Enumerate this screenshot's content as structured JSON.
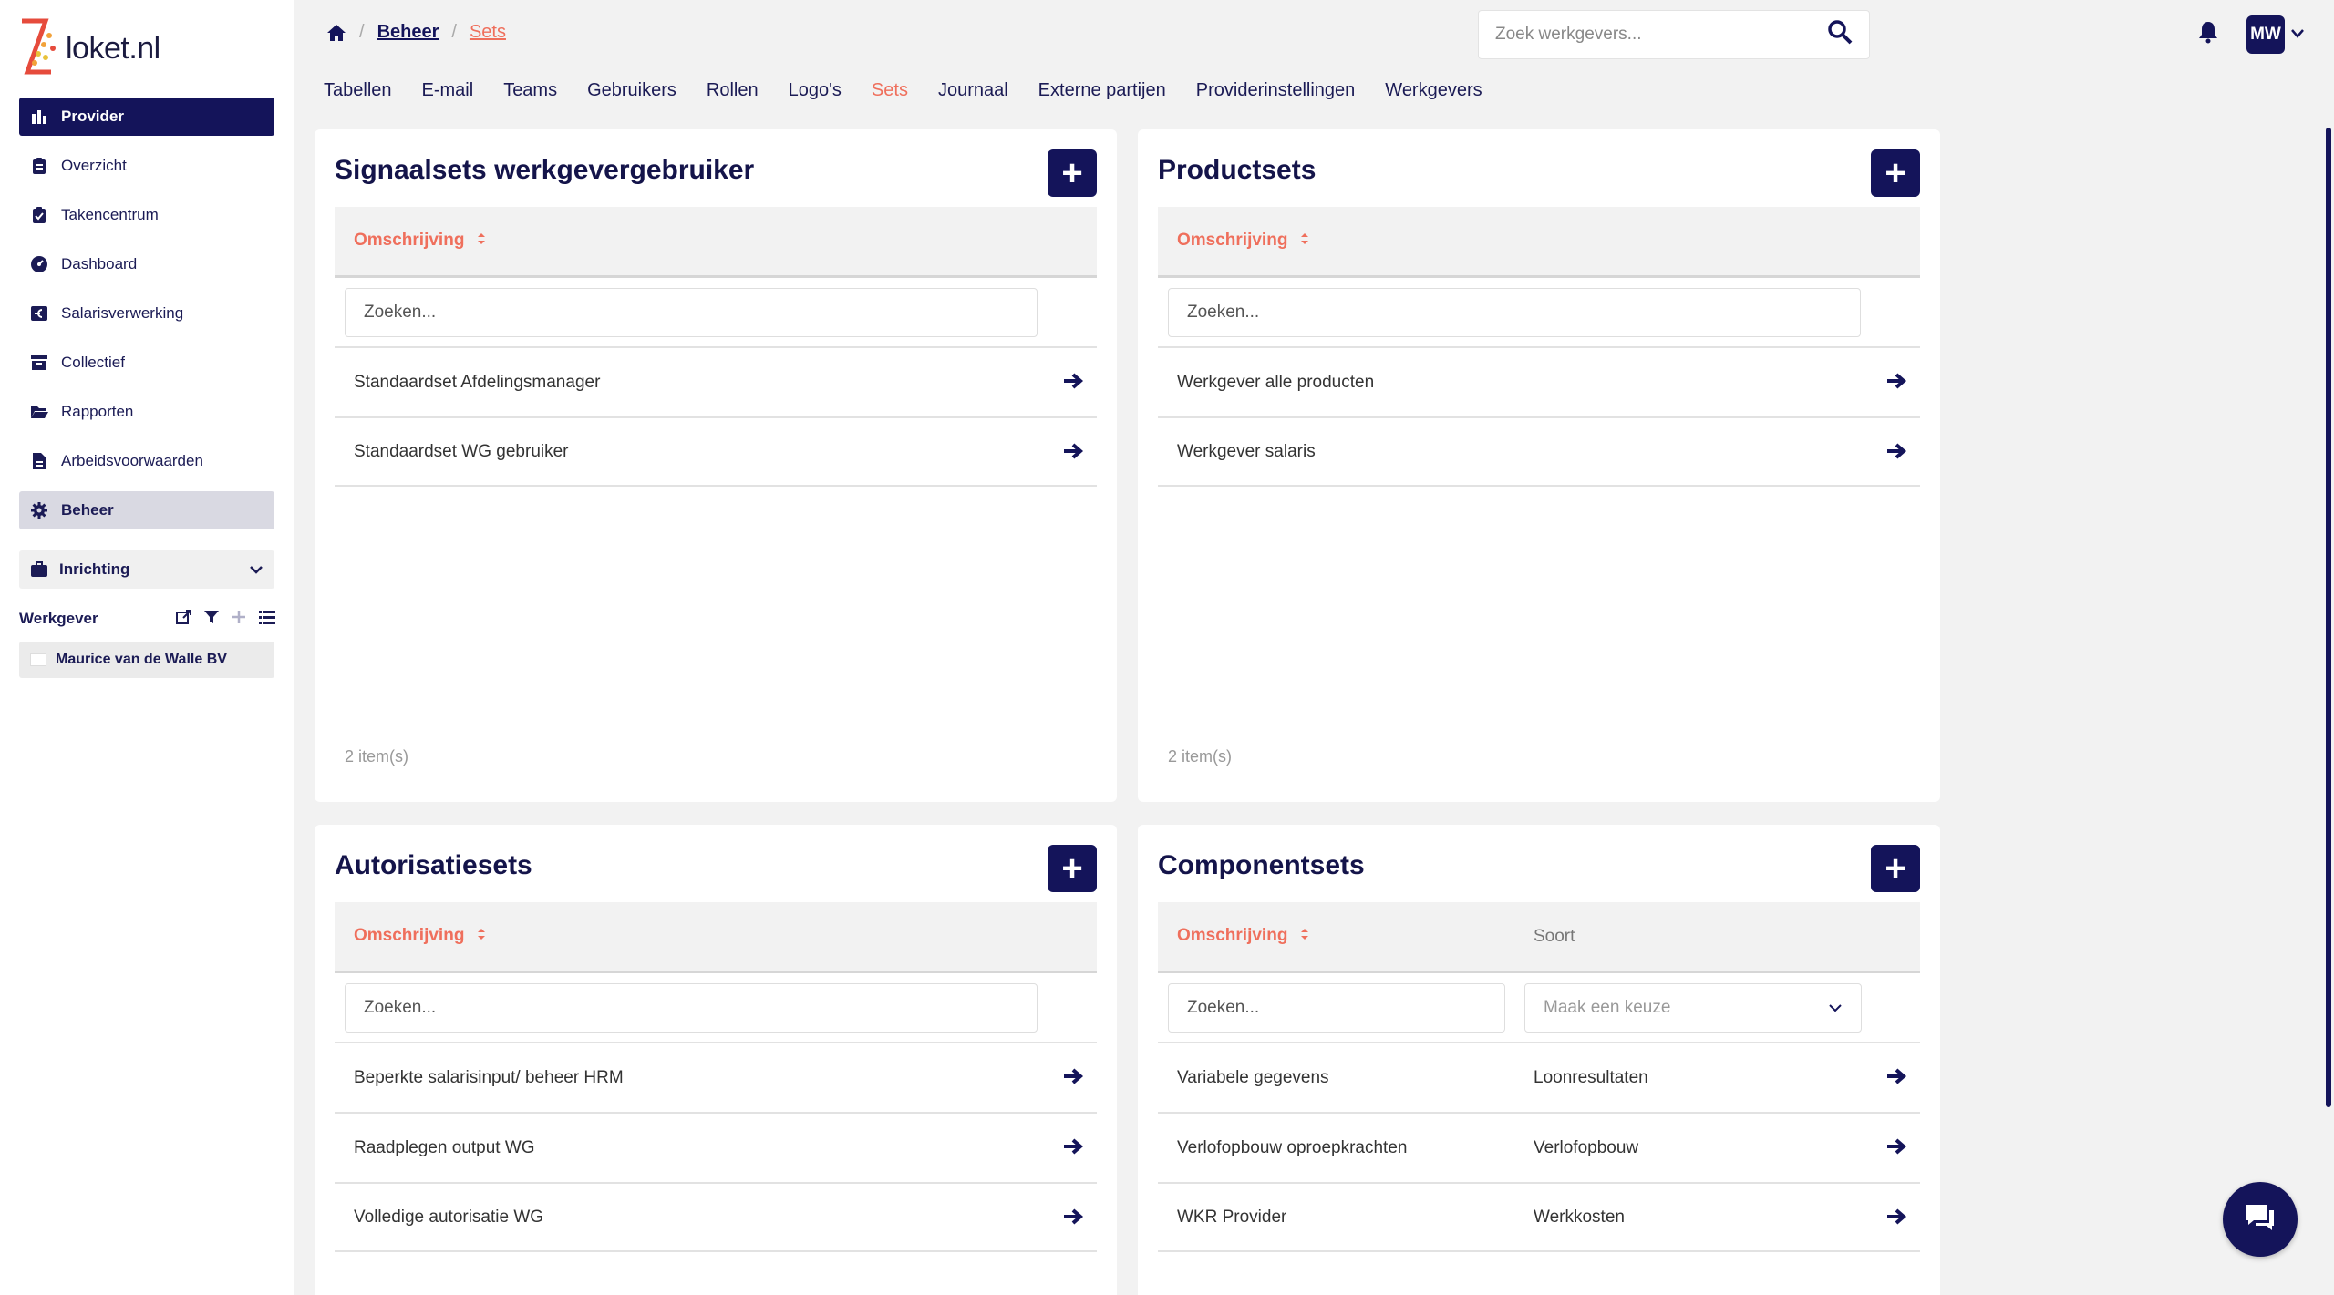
{
  "app": {
    "logo_text": "loket.nl"
  },
  "sidebar": {
    "provider_label": "Provider",
    "items": [
      {
        "label": "Overzicht",
        "icon": "clipboard-icon"
      },
      {
        "label": "Takencentrum",
        "icon": "clipboard-check-icon"
      },
      {
        "label": "Dashboard",
        "icon": "dashboard-icon"
      },
      {
        "label": "Salarisverwerking",
        "icon": "euro-icon"
      },
      {
        "label": "Collectief",
        "icon": "archive-icon"
      },
      {
        "label": "Rapporten",
        "icon": "folder-open-icon"
      },
      {
        "label": "Arbeidsvoorwaarden",
        "icon": "document-icon"
      },
      {
        "label": "Beheer",
        "icon": "gear-icon"
      }
    ],
    "inrichting_label": "Inrichting",
    "werkgever_header": "Werkgever",
    "werkgever_item": "Maurice van de Walle BV"
  },
  "header": {
    "breadcrumb": [
      "Beheer",
      "Sets"
    ],
    "search_placeholder": "Zoek werkgevers...",
    "avatar_initials": "MW"
  },
  "tabs": [
    "Tabellen",
    "E-mail",
    "Teams",
    "Gebruikers",
    "Rollen",
    "Logo's",
    "Sets",
    "Journaal",
    "Externe partijen",
    "Providerinstellingen",
    "Werkgevers"
  ],
  "active_tab": "Sets",
  "cards": {
    "signaalsets": {
      "title": "Signaalsets werkgevergebruiker",
      "col_header": "Omschrijving",
      "search_placeholder": "Zoeken...",
      "rows": [
        "Standaardset Afdelingsmanager",
        "Standaardset WG gebruiker"
      ],
      "count": "2 item(s)"
    },
    "productsets": {
      "title": "Productsets",
      "col_header": "Omschrijving",
      "search_placeholder": "Zoeken...",
      "rows": [
        "Werkgever alle producten",
        "Werkgever salaris"
      ],
      "count": "2 item(s)"
    },
    "autorisatiesets": {
      "title": "Autorisatiesets",
      "col_header": "Omschrijving",
      "search_placeholder": "Zoeken...",
      "rows": [
        "Beperkte salarisinput/ beheer HRM",
        "Raadplegen output WG",
        "Volledige autorisatie WG"
      ]
    },
    "componentsets": {
      "title": "Componentsets",
      "col_header": "Omschrijving",
      "col_header2": "Soort",
      "search_placeholder": "Zoeken...",
      "select_placeholder": "Maak een keuze",
      "rows": [
        {
          "omschrijving": "Variabele gegevens",
          "soort": "Loonresultaten"
        },
        {
          "omschrijving": "Verlofopbouw oproepkrachten",
          "soort": "Verlofopbouw"
        },
        {
          "omschrijving": "WKR Provider",
          "soort": "Werkkosten"
        }
      ]
    }
  },
  "colors": {
    "navy": "#14145a",
    "accent": "#ef6f5c",
    "background": "#f2f2f2"
  }
}
